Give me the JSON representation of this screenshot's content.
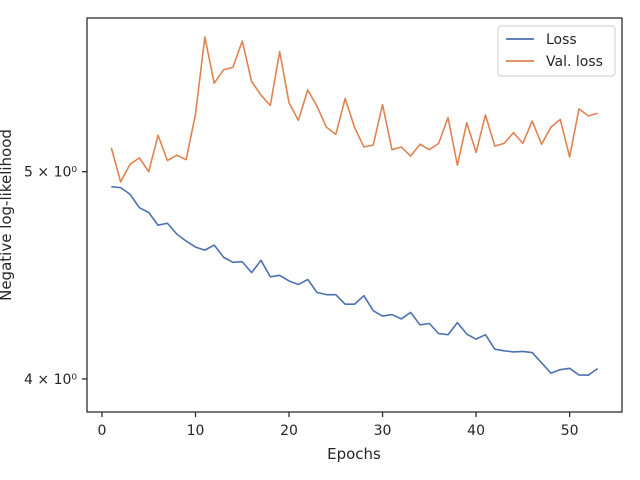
{
  "chart_data": {
    "type": "line",
    "xlabel": "Epochs",
    "ylabel": "Negative log-likelihood",
    "yscale": "log",
    "xlim": [
      -1.6,
      55.6
    ],
    "ylim": [
      3.86,
      5.9
    ],
    "grid": false,
    "legend_position": "top-right",
    "x_ticks": [
      {
        "value": 0,
        "label": "0"
      },
      {
        "value": 10,
        "label": "10"
      },
      {
        "value": 20,
        "label": "20"
      },
      {
        "value": 30,
        "label": "30"
      },
      {
        "value": 40,
        "label": "40"
      },
      {
        "value": 50,
        "label": "50"
      }
    ],
    "y_ticks": [
      {
        "value": 4,
        "label": "4 × 10⁰"
      },
      {
        "value": 5,
        "label": "5 × 10⁰"
      }
    ],
    "x": [
      1,
      2,
      3,
      4,
      5,
      6,
      7,
      8,
      9,
      10,
      11,
      12,
      13,
      14,
      15,
      16,
      17,
      18,
      19,
      20,
      21,
      22,
      23,
      24,
      25,
      26,
      27,
      28,
      29,
      30,
      31,
      32,
      33,
      34,
      35,
      36,
      37,
      38,
      39,
      40,
      41,
      42,
      43,
      44,
      45,
      46,
      47,
      48,
      49,
      50,
      51,
      52,
      53
    ],
    "series": [
      {
        "name": "Loss",
        "color": "#4c72b0",
        "values": [
          4.92,
          4.915,
          4.88,
          4.81,
          4.785,
          4.72,
          4.73,
          4.675,
          4.64,
          4.61,
          4.595,
          4.62,
          4.56,
          4.535,
          4.538,
          4.485,
          4.545,
          4.465,
          4.472,
          4.445,
          4.428,
          4.452,
          4.39,
          4.38,
          4.38,
          4.335,
          4.335,
          4.375,
          4.305,
          4.28,
          4.287,
          4.267,
          4.297,
          4.24,
          4.246,
          4.2,
          4.195,
          4.25,
          4.198,
          4.175,
          4.195,
          4.13,
          4.123,
          4.118,
          4.12,
          4.115,
          4.07,
          4.025,
          4.04,
          4.046,
          4.017,
          4.016,
          4.045
        ]
      },
      {
        "name": "Val. loss",
        "color": "#dd8452",
        "values": [
          5.13,
          4.945,
          5.04,
          5.075,
          5.0,
          5.2,
          5.06,
          5.09,
          5.065,
          5.32,
          5.78,
          5.5,
          5.58,
          5.595,
          5.755,
          5.51,
          5.43,
          5.37,
          5.69,
          5.385,
          5.285,
          5.46,
          5.365,
          5.245,
          5.205,
          5.41,
          5.245,
          5.135,
          5.145,
          5.375,
          5.12,
          5.135,
          5.085,
          5.15,
          5.12,
          5.155,
          5.3,
          5.035,
          5.27,
          5.105,
          5.315,
          5.14,
          5.155,
          5.215,
          5.155,
          5.28,
          5.15,
          5.245,
          5.29,
          5.08,
          5.35,
          5.31,
          5.325
        ]
      }
    ]
  }
}
